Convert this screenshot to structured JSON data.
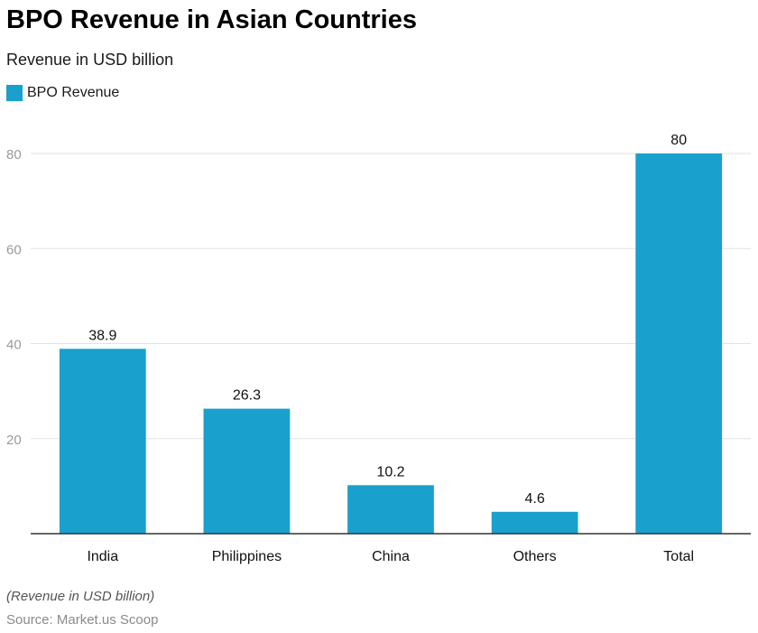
{
  "chart_data": {
    "type": "bar",
    "title": "BPO Revenue in Asian Countries",
    "subtitle": "Revenue in USD billion",
    "categories": [
      "India",
      "Philippines",
      "China",
      "Others",
      "Total"
    ],
    "series": [
      {
        "name": "BPO Revenue",
        "values": [
          38.9,
          26.3,
          10.2,
          4.6,
          80
        ]
      }
    ],
    "value_labels": [
      "38.9",
      "26.3",
      "10.2",
      "4.6",
      "80"
    ],
    "yticks": [
      20,
      40,
      60,
      80
    ],
    "ylim": [
      0,
      80
    ],
    "grid": true,
    "legend": "top-left",
    "xlabel": "",
    "ylabel": ""
  },
  "colors": {
    "bar": "#1aa0cc",
    "grid": "#e2e2e2",
    "axis": "#333333",
    "tick_text": "#9a9a9a"
  },
  "footer": {
    "note": "(Revenue in USD billion)",
    "source": "Source: Market.us Scoop"
  }
}
